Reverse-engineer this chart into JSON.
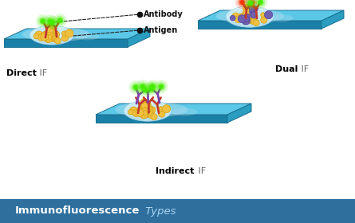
{
  "title_bold": "Immunofluorescence",
  "title_light": " Types",
  "title_bar_color": "#2e6f9e",
  "title_text_bold_color": "#ffffff",
  "title_text_light_color": "#aad4f0",
  "bg_color": "#ffffff",
  "slide_top_color": "#5bc8e8",
  "slide_top_color2": "#7dd8f0",
  "slide_side_color": "#2a9dc0",
  "slide_front_color": "#1a80a8",
  "slide_edge_color": "#1a6f90",
  "antigen_color": "#f0c040",
  "antigen_border": "#d4a010",
  "antigen_purple": "#7060b0",
  "primary_ab_color": "#c0392b",
  "secondary_ab_color": "#7b3fa8",
  "fluorescence_green": "#44ee00",
  "fluorescence_red": "#ff3300",
  "cell_color": "#d8f0f8",
  "cell_edge": "#a0d8ee",
  "label_direct": "Direct",
  "label_indirect": "Indirect",
  "label_dual": "Dual",
  "label_if": " IF",
  "annotation_antibody": "Antibody",
  "annotation_antigen": "Antigen"
}
